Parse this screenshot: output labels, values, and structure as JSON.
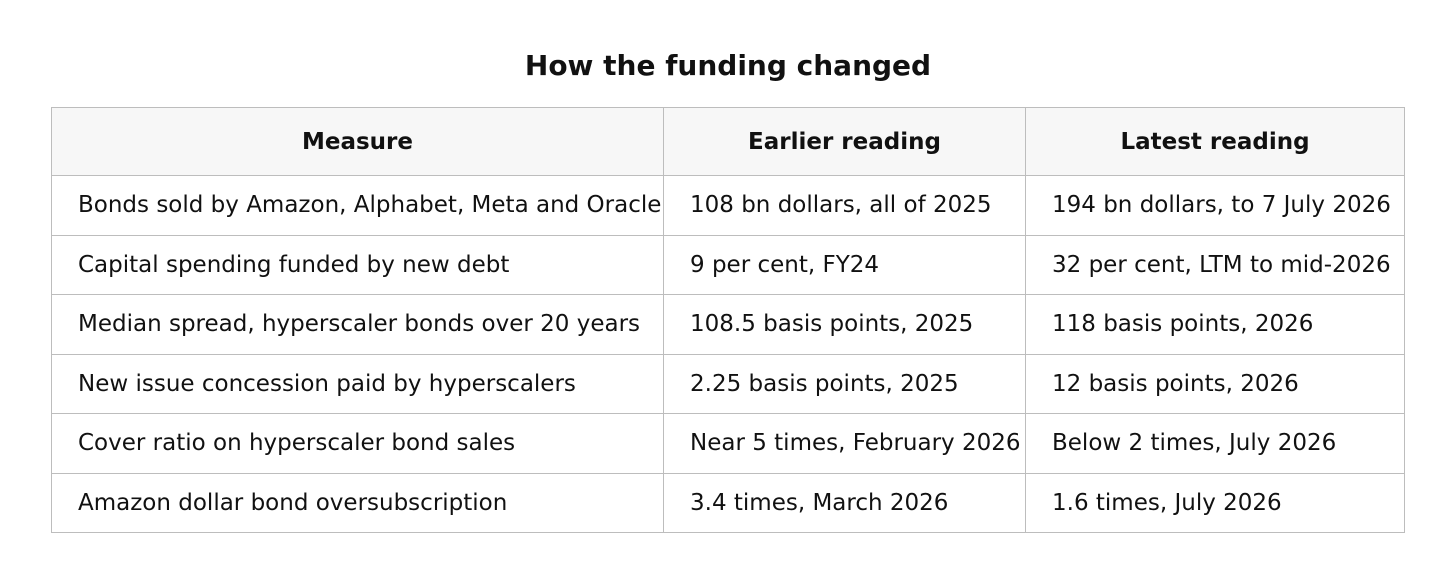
{
  "title": "How the funding changed",
  "table": {
    "columns": [
      "Measure",
      "Earlier reading",
      "Latest reading"
    ],
    "rows": [
      [
        "Bonds sold by Amazon, Alphabet, Meta and Oracle",
        "108 bn dollars, all of 2025",
        "194 bn dollars, to 7 July 2026"
      ],
      [
        "Capital spending funded by new debt",
        "9 per cent, FY24",
        "32 per cent, LTM to mid-2026"
      ],
      [
        "Median spread, hyperscaler bonds over 20 years",
        "108.5 basis points, 2025",
        "118 basis points, 2026"
      ],
      [
        "New issue concession paid by hyperscalers",
        "2.25 basis points, 2025",
        "12 basis points, 2026"
      ],
      [
        "Cover ratio on hyperscaler bond sales",
        "Near 5 times, February 2026",
        "Below 2 times, July 2026"
      ],
      [
        "Amazon dollar bond oversubscription",
        "3.4 times, March 2026",
        "1.6 times, July 2026"
      ]
    ]
  }
}
